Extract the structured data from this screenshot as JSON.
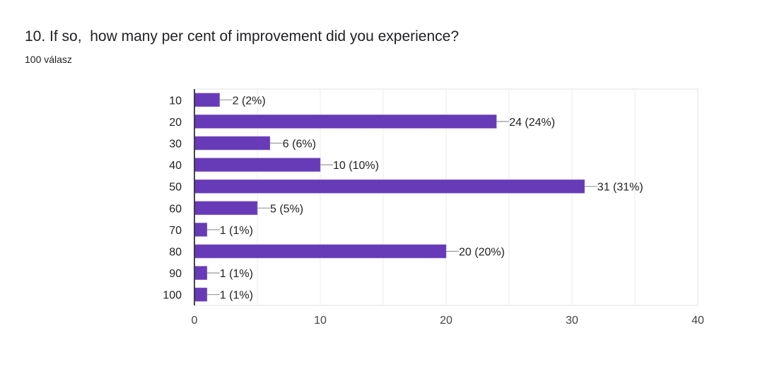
{
  "header": {
    "title": "10. If so,  how many per cent of improvement did you experience?",
    "responses": "100 válasz"
  },
  "colors": {
    "bar": "#673ab7",
    "grid": "#ebebeb",
    "axis": "#333333",
    "leader": "#999999"
  },
  "chart_data": {
    "type": "bar",
    "orientation": "horizontal",
    "title": "10. If so,  how many per cent of improvement did you experience?",
    "categories": [
      "10",
      "20",
      "30",
      "40",
      "50",
      "60",
      "70",
      "80",
      "90",
      "100"
    ],
    "values": [
      2,
      24,
      6,
      10,
      31,
      5,
      1,
      20,
      1,
      1
    ],
    "labels": [
      "2 (2%)",
      "24 (24%)",
      "6 (6%)",
      "10 (10%)",
      "31 (31%)",
      "5 (5%)",
      "1 (1%)",
      "20 (20%)",
      "1 (1%)",
      "1 (1%)"
    ],
    "xlim": [
      0,
      40
    ],
    "xticks": [
      "0",
      "10",
      "20",
      "30",
      "40"
    ],
    "grid": true,
    "xlabel": "",
    "ylabel": ""
  }
}
